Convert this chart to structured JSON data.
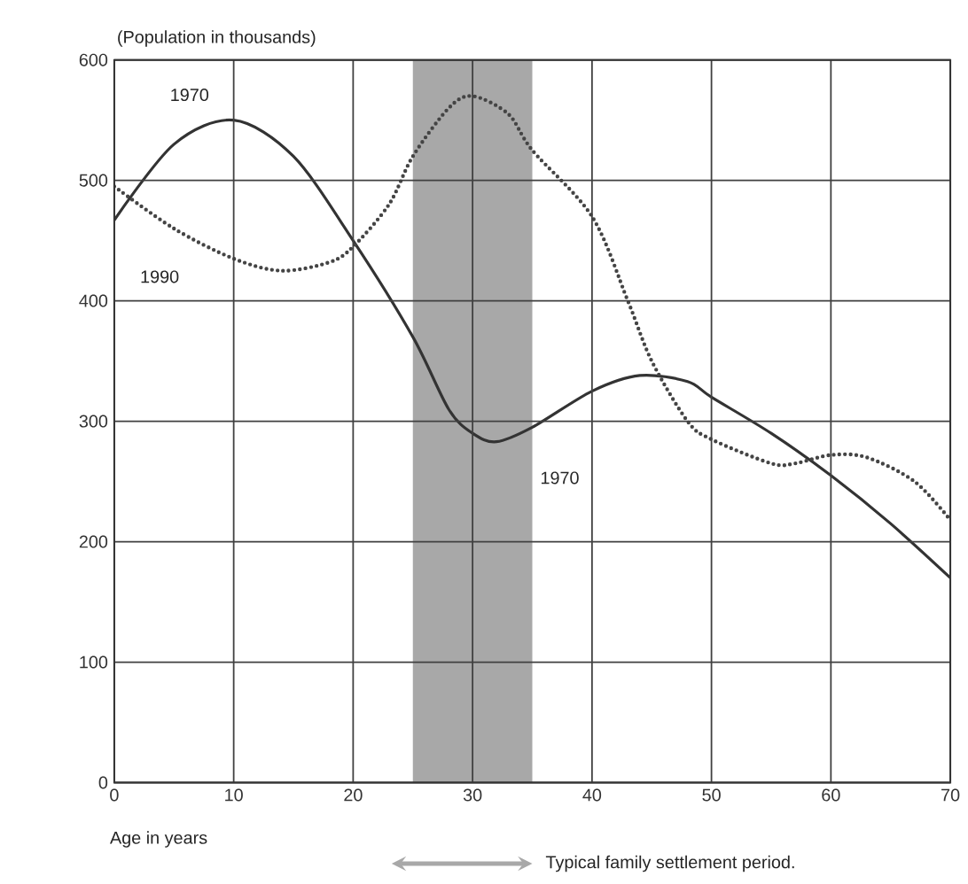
{
  "chart_data": {
    "type": "line",
    "xlabel": "Age in years",
    "ylabel": "(Population in thousands)",
    "xlim": [
      0,
      70
    ],
    "ylim": [
      0,
      600
    ],
    "xticks": [
      0,
      10,
      20,
      30,
      40,
      50,
      60,
      70
    ],
    "yticks": [
      0,
      100,
      200,
      300,
      400,
      500,
      600
    ],
    "grid": true,
    "marker": "none",
    "series": [
      {
        "color": "#333333",
        "line_style": "solid",
        "x": [
          0,
          5,
          10,
          15,
          20,
          25,
          28,
          30,
          32,
          35,
          40,
          44,
          48,
          50,
          55,
          60,
          65,
          70
        ],
        "values": [
          467,
          530,
          550,
          520,
          450,
          370,
          310,
          290,
          283,
          295,
          325,
          338,
          333,
          320,
          290,
          255,
          215,
          170
        ]
      },
      {
        "color": "#444444",
        "line_style": "dotted",
        "x": [
          0,
          5,
          10,
          14,
          18,
          20,
          23,
          25,
          28,
          30,
          33,
          35,
          40,
          43,
          45,
          48,
          50,
          55,
          57,
          60,
          63,
          67,
          70
        ],
        "values": [
          495,
          460,
          435,
          425,
          432,
          445,
          480,
          520,
          560,
          570,
          555,
          525,
          470,
          400,
          350,
          300,
          285,
          265,
          265,
          272,
          270,
          250,
          218
        ]
      }
    ],
    "bands": [
      {
        "axis": "x",
        "from": 25,
        "to": 35,
        "label": "Typical family settlement period.",
        "color": "#a8a8a8"
      }
    ],
    "annotations": [
      {
        "text": "1970",
        "x": 6.3,
        "y": 571
      },
      {
        "text": "1990",
        "x": 3.8,
        "y": 420
      },
      {
        "text": "1970",
        "x": 37.3,
        "y": 253
      }
    ]
  }
}
